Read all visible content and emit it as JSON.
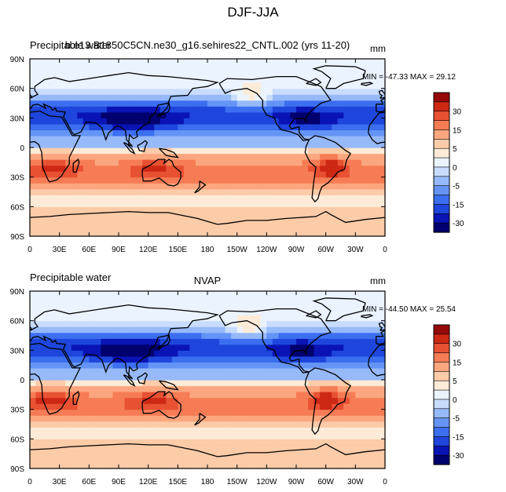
{
  "page_title": "DJF-JJA",
  "colors": {
    "levels": [
      "#00006e",
      "#0a14b4",
      "#1e46dc",
      "#3c6ef0",
      "#6494f5",
      "#96b9fa",
      "#c8dcfd",
      "#ebf3ff",
      "#fdebd8",
      "#fccba8",
      "#fba67e",
      "#f67c55",
      "#e85132",
      "#cd2814",
      "#960a0a"
    ],
    "coast": "#000000"
  },
  "colorbar_labels": [
    "30",
    "15",
    "5",
    "0",
    "-5",
    "-15",
    "-30"
  ],
  "chart_data": [
    {
      "type": "heatmap",
      "title_left": "Precipitable water",
      "title_center": "b.e13.B1850C5CN.ne30_g16.sehires22_CNTL.002 (yrs 11-20)",
      "units": "mm",
      "min_max": "MIN = -47.33 MAX =  29.12",
      "min": -47.33,
      "max": 29.12,
      "x_ticks": [
        "0",
        "30E",
        "60E",
        "90E",
        "120E",
        "150E",
        "180",
        "150W",
        "120W",
        "90W",
        "60W",
        "30W",
        "0"
      ],
      "y_ticks": [
        "90N",
        "60N",
        "30N",
        "0",
        "30S",
        "60S",
        "90S"
      ],
      "xlim": [
        0,
        360
      ],
      "ylim": [
        -90,
        90
      ],
      "contour_levels": [
        -35,
        -30,
        -25,
        -20,
        -15,
        -10,
        -5,
        -2,
        0,
        2,
        5,
        10,
        15,
        20,
        25,
        30
      ]
    },
    {
      "type": "heatmap",
      "title_left": "Precipitable water",
      "title_center": "NVAP",
      "units": "mm",
      "min_max": "MIN = -44.50 MAX =  25.54",
      "min": -44.5,
      "max": 25.54,
      "x_ticks": [
        "0",
        "30E",
        "60E",
        "90E",
        "120E",
        "150E",
        "180",
        "150W",
        "120W",
        "90W",
        "60W",
        "30W",
        "0"
      ],
      "y_ticks": [
        "90N",
        "60N",
        "30N",
        "0",
        "30S",
        "60S",
        "90S"
      ],
      "xlim": [
        0,
        360
      ],
      "ylim": [
        -90,
        90
      ],
      "contour_levels": [
        -35,
        -30,
        -25,
        -20,
        -15,
        -10,
        -5,
        -2,
        0,
        2,
        5,
        10,
        15,
        20,
        25,
        30
      ]
    }
  ]
}
